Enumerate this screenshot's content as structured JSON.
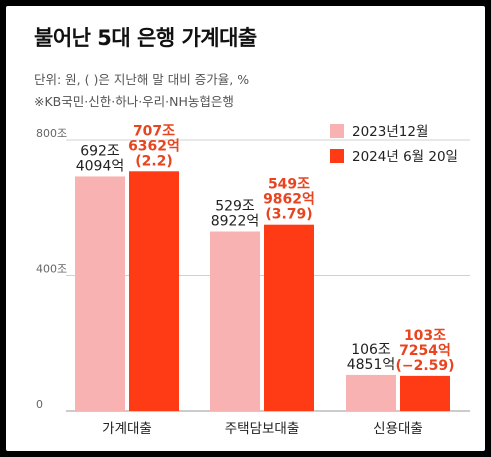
{
  "title": "불어난 5대 은행 가계대출",
  "subtitle": "단위: 원, ( )은 지난해 말 대비 증가율, %",
  "note": "※KB국민·신한·하나·우리·NH농협은행",
  "colors": {
    "series_2023": "#f8b2b2",
    "series_2024": "#ff3b16",
    "label_2024": "#e8441f",
    "label_2023": "#222222",
    "grid": "#d0d0d0"
  },
  "chart_data": {
    "type": "bar",
    "categories": [
      "가계대출",
      "주택담보대출",
      "신용대출"
    ],
    "ylim": [
      0,
      800
    ],
    "yticks": [
      {
        "value": 0,
        "label": "0"
      },
      {
        "value": 400,
        "label": "400조"
      },
      {
        "value": 800,
        "label": "800조"
      }
    ],
    "legend_position": "top-right",
    "series": [
      {
        "name": "2023년12월",
        "values": [
          692.4094,
          529.8922,
          106.4851
        ],
        "labels": [
          [
            "692조",
            "4094억"
          ],
          [
            "529조",
            "8922억"
          ],
          [
            "106조",
            "4851억"
          ]
        ]
      },
      {
        "name": "2024년 6월 20일",
        "values": [
          707.6362,
          549.9862,
          103.7254
        ],
        "labels": [
          [
            "707조",
            "6362억",
            "(2.2)"
          ],
          [
            "549조",
            "9862억",
            "(3.79)"
          ],
          [
            "103조",
            "7254억",
            "(−2.59)"
          ]
        ]
      }
    ]
  }
}
